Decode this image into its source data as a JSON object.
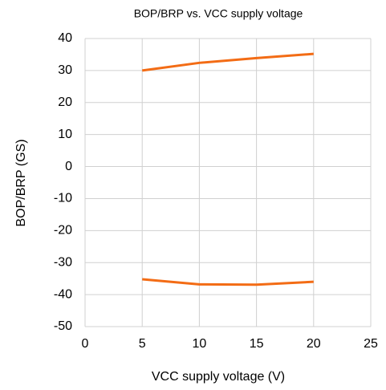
{
  "chart_data": {
    "type": "line",
    "title": "BOP/BRP vs. VCC supply voltage",
    "x_label": "VCC supply voltage (V)",
    "y_label": "BOP/BRP (GS)",
    "x": [
      5,
      10,
      15,
      20
    ],
    "series": [
      {
        "color": "#f36c15",
        "values": [
          30,
          32.4,
          33.9,
          35.2
        ]
      },
      {
        "color": "#f36c15",
        "values": [
          -35.2,
          -36.8,
          -36.9,
          -36.0
        ]
      }
    ],
    "xlim": [
      0,
      25
    ],
    "xticks": [
      0,
      5,
      10,
      15,
      20,
      25
    ],
    "ylim": [
      -50,
      40
    ],
    "yticks": [
      40,
      30,
      20,
      10,
      0,
      -10,
      -20,
      -30,
      -40,
      -50
    ],
    "grid": true
  }
}
